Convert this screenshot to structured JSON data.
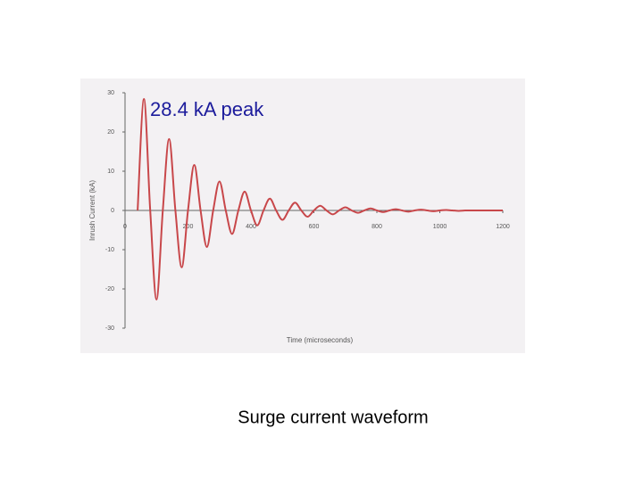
{
  "chart_data": {
    "type": "line",
    "annotation": "28.4 kA peak",
    "caption": "Surge current waveform",
    "y_label": "Inrush Current (kA)",
    "x_label": "Time (microseconds)",
    "x": [
      40,
      60,
      80,
      100,
      120,
      140,
      160,
      180,
      200,
      220,
      240,
      260,
      280,
      300,
      320,
      340,
      360,
      380,
      400,
      420,
      440,
      460,
      480,
      500,
      520,
      540,
      560,
      580,
      600,
      620,
      640,
      660,
      680,
      700,
      720,
      740,
      760,
      780,
      800,
      820,
      840,
      860,
      880,
      900,
      920,
      940,
      960,
      980,
      1000,
      1020,
      1040,
      1060,
      1080,
      1100,
      1120,
      1140,
      1160,
      1180,
      1200
    ],
    "series": [
      {
        "color": "#c8474a",
        "values": [
          0,
          28.4,
          0,
          -22.7,
          0,
          18.2,
          0,
          -14.5,
          0,
          11.6,
          0,
          -9.3,
          0,
          7.4,
          0,
          -6.0,
          0,
          4.8,
          0,
          -3.8,
          0,
          3.0,
          0,
          -2.4,
          0,
          2.0,
          0,
          -1.6,
          0,
          1.2,
          0,
          -1.0,
          0,
          0.8,
          0,
          -0.6,
          0,
          0.5,
          0,
          -0.4,
          0,
          0.3,
          0,
          -0.3,
          0,
          0.2,
          0,
          -0.2,
          0,
          0.1,
          0,
          -0.1,
          0,
          0,
          0,
          0,
          0,
          0,
          0
        ]
      }
    ],
    "xlim": [
      0,
      1200
    ],
    "xticks": [
      0,
      200,
      400,
      600,
      800,
      1000,
      1200
    ],
    "ylim": [
      -30,
      30
    ],
    "yticks": [
      30,
      20,
      10,
      0,
      -10,
      -20,
      -30
    ]
  }
}
